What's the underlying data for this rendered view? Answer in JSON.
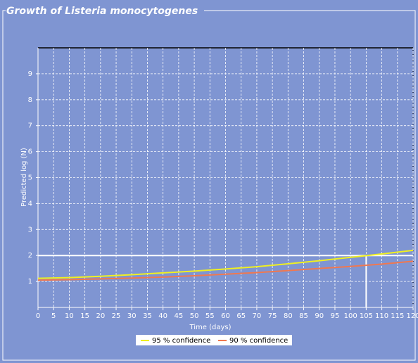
{
  "chart_data": {
    "type": "line",
    "title": "Growth of Listeria monocytogenes",
    "xlabel": "Time (days)",
    "ylabel": "Predicted log (N)",
    "x": [
      0,
      10,
      20,
      30,
      40,
      50,
      60,
      70,
      80,
      90,
      100,
      110,
      120
    ],
    "series": [
      {
        "name": "95 % confidence",
        "color": "#f0f020",
        "values": [
          1.12,
          1.15,
          1.2,
          1.26,
          1.33,
          1.4,
          1.48,
          1.57,
          1.68,
          1.8,
          1.93,
          2.06,
          2.2
        ]
      },
      {
        "name": "90 % confidence",
        "color": "#f07850",
        "values": [
          1.05,
          1.07,
          1.1,
          1.13,
          1.17,
          1.22,
          1.28,
          1.34,
          1.42,
          1.5,
          1.58,
          1.67,
          1.78
        ]
      }
    ],
    "threshold": {
      "y": 2,
      "x": 105
    },
    "xlim": [
      0,
      120
    ],
    "xticks": [
      0,
      5,
      10,
      15,
      20,
      25,
      30,
      35,
      40,
      45,
      50,
      55,
      60,
      65,
      70,
      75,
      80,
      85,
      90,
      95,
      100,
      105,
      110,
      115,
      120
    ],
    "ylim": [
      0,
      10
    ],
    "yticks": [
      1,
      2,
      3,
      4,
      5,
      6,
      7,
      8,
      9
    ],
    "grid": true,
    "legend": "bottom"
  }
}
